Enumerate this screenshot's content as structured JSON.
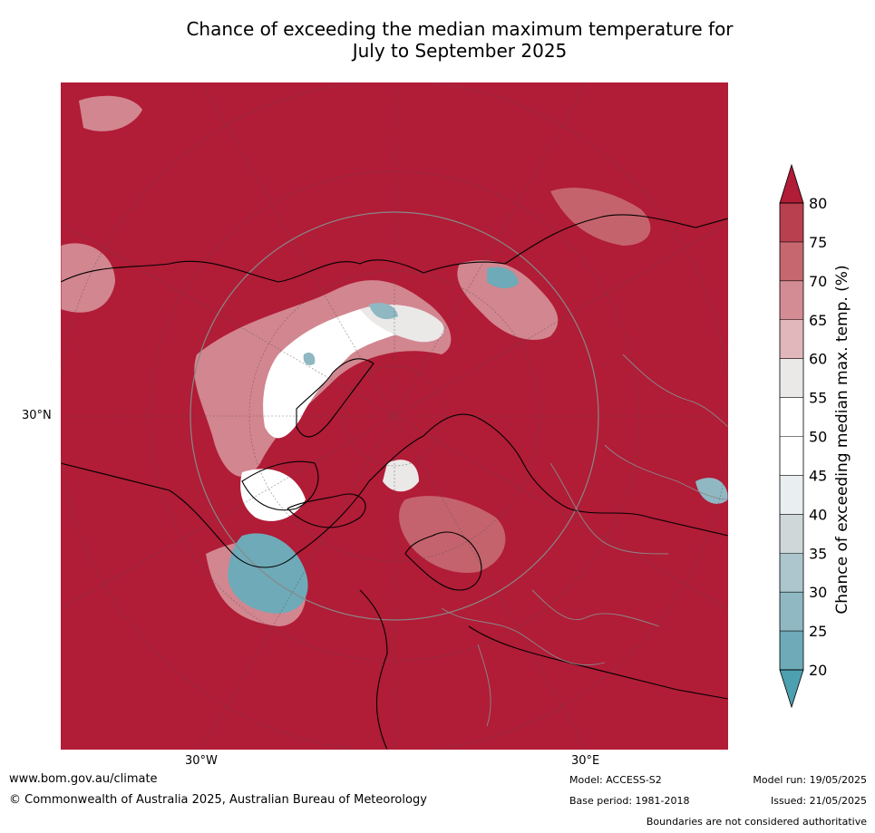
{
  "title": {
    "line1": "Chance of exceeding the median maximum temperature for",
    "line2": "July to September 2025"
  },
  "map": {
    "projection": "north polar stereographic",
    "lat_label": "30°N",
    "lon_labels": [
      "30°W",
      "30°E"
    ],
    "colors": {
      "ocean_land_high": "#b11c37",
      "neutral": "#ffffff",
      "cool": "#55a6b6"
    }
  },
  "legend": {
    "title": "Chance of exceeding median max. temp. (%)",
    "ticks": [
      "80",
      "75",
      "70",
      "65",
      "60",
      "55",
      "50",
      "45",
      "40",
      "35",
      "30",
      "25",
      "20"
    ],
    "band_colors": [
      "#b9404f",
      "#c66770",
      "#d48c94",
      "#e1b7bb",
      "#ebe8e8",
      "#ffffff",
      "#ffffff",
      "#e9eef0",
      "#cfd7d9",
      "#adc6cd",
      "#8fb8c3",
      "#6eaab8"
    ],
    "top_arrow_color": "#b11c37",
    "bottom_arrow_color": "#4da0b0"
  },
  "footer": {
    "website": "www.bom.gov.au/climate",
    "copyright": "© Commonwealth of Australia 2025, Australian Bureau of Meteorology",
    "model": "Model: ACCESS-S2",
    "base_period": "Base period: 1981-2018",
    "model_run": "Model run: 19/05/2025",
    "issued": "Issued: 21/05/2025",
    "disclaimer": "Boundaries are not considered authoritative"
  }
}
